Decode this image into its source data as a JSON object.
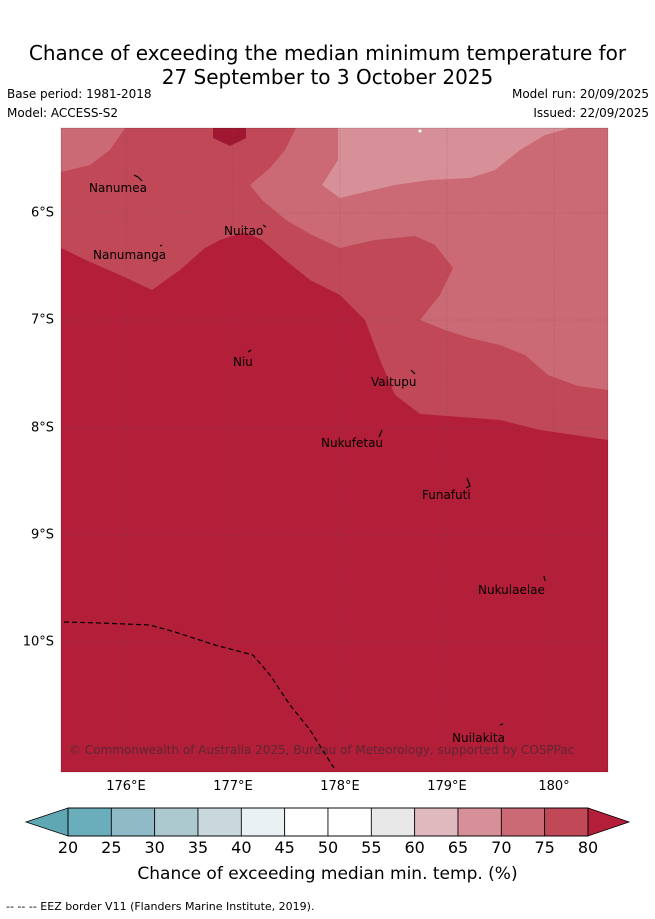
{
  "title_line1": "Chance of exceeding the median minimum temperature for",
  "title_line2": "27 September to 3 October 2025",
  "base_period": "Base period: 1981-2018",
  "model": "Model: ACCESS-S2",
  "model_run": "Model run: 20/09/2025",
  "issued": "Issued: 22/09/2025",
  "map": {
    "lon_ticks": [
      "176°E",
      "177°E",
      "178°E",
      "179°E",
      "180°"
    ],
    "lat_ticks": [
      "6°S",
      "7°S",
      "8°S",
      "9°S",
      "10°S"
    ],
    "places": [
      {
        "name": "Nanumea"
      },
      {
        "name": "Nuitao"
      },
      {
        "name": "Nanumanga"
      },
      {
        "name": "Niu"
      },
      {
        "name": "Vaitupu"
      },
      {
        "name": "Nukufetau"
      },
      {
        "name": "Funafuti"
      },
      {
        "name": "Nukulaelae"
      },
      {
        "name": "Nuilakita"
      }
    ],
    "copyright": "© Commonwealth of Australia 2025, Bureau of Meteorology, supported by COSPPac"
  },
  "colorbar": {
    "ticks": [
      "20",
      "25",
      "30",
      "35",
      "40",
      "45",
      "50",
      "55",
      "60",
      "65",
      "70",
      "75",
      "80"
    ],
    "colors": [
      "#6aaebb",
      "#8fbbc6",
      "#abc9ce",
      "#c8d8dc",
      "#eaf1f3",
      "#ffffff",
      "#ffffff",
      "#e8e8e8",
      "#e0b9bf",
      "#d79097",
      "#cb6a74",
      "#c04857"
    ],
    "under_color": "#5fa7b3",
    "over_color": "#b31e39",
    "label": "Chance of exceeding median min. temp. (%)"
  },
  "footer": "--  --  -- EEZ border V11 (Flanders Marine Institute, 2019)."
}
